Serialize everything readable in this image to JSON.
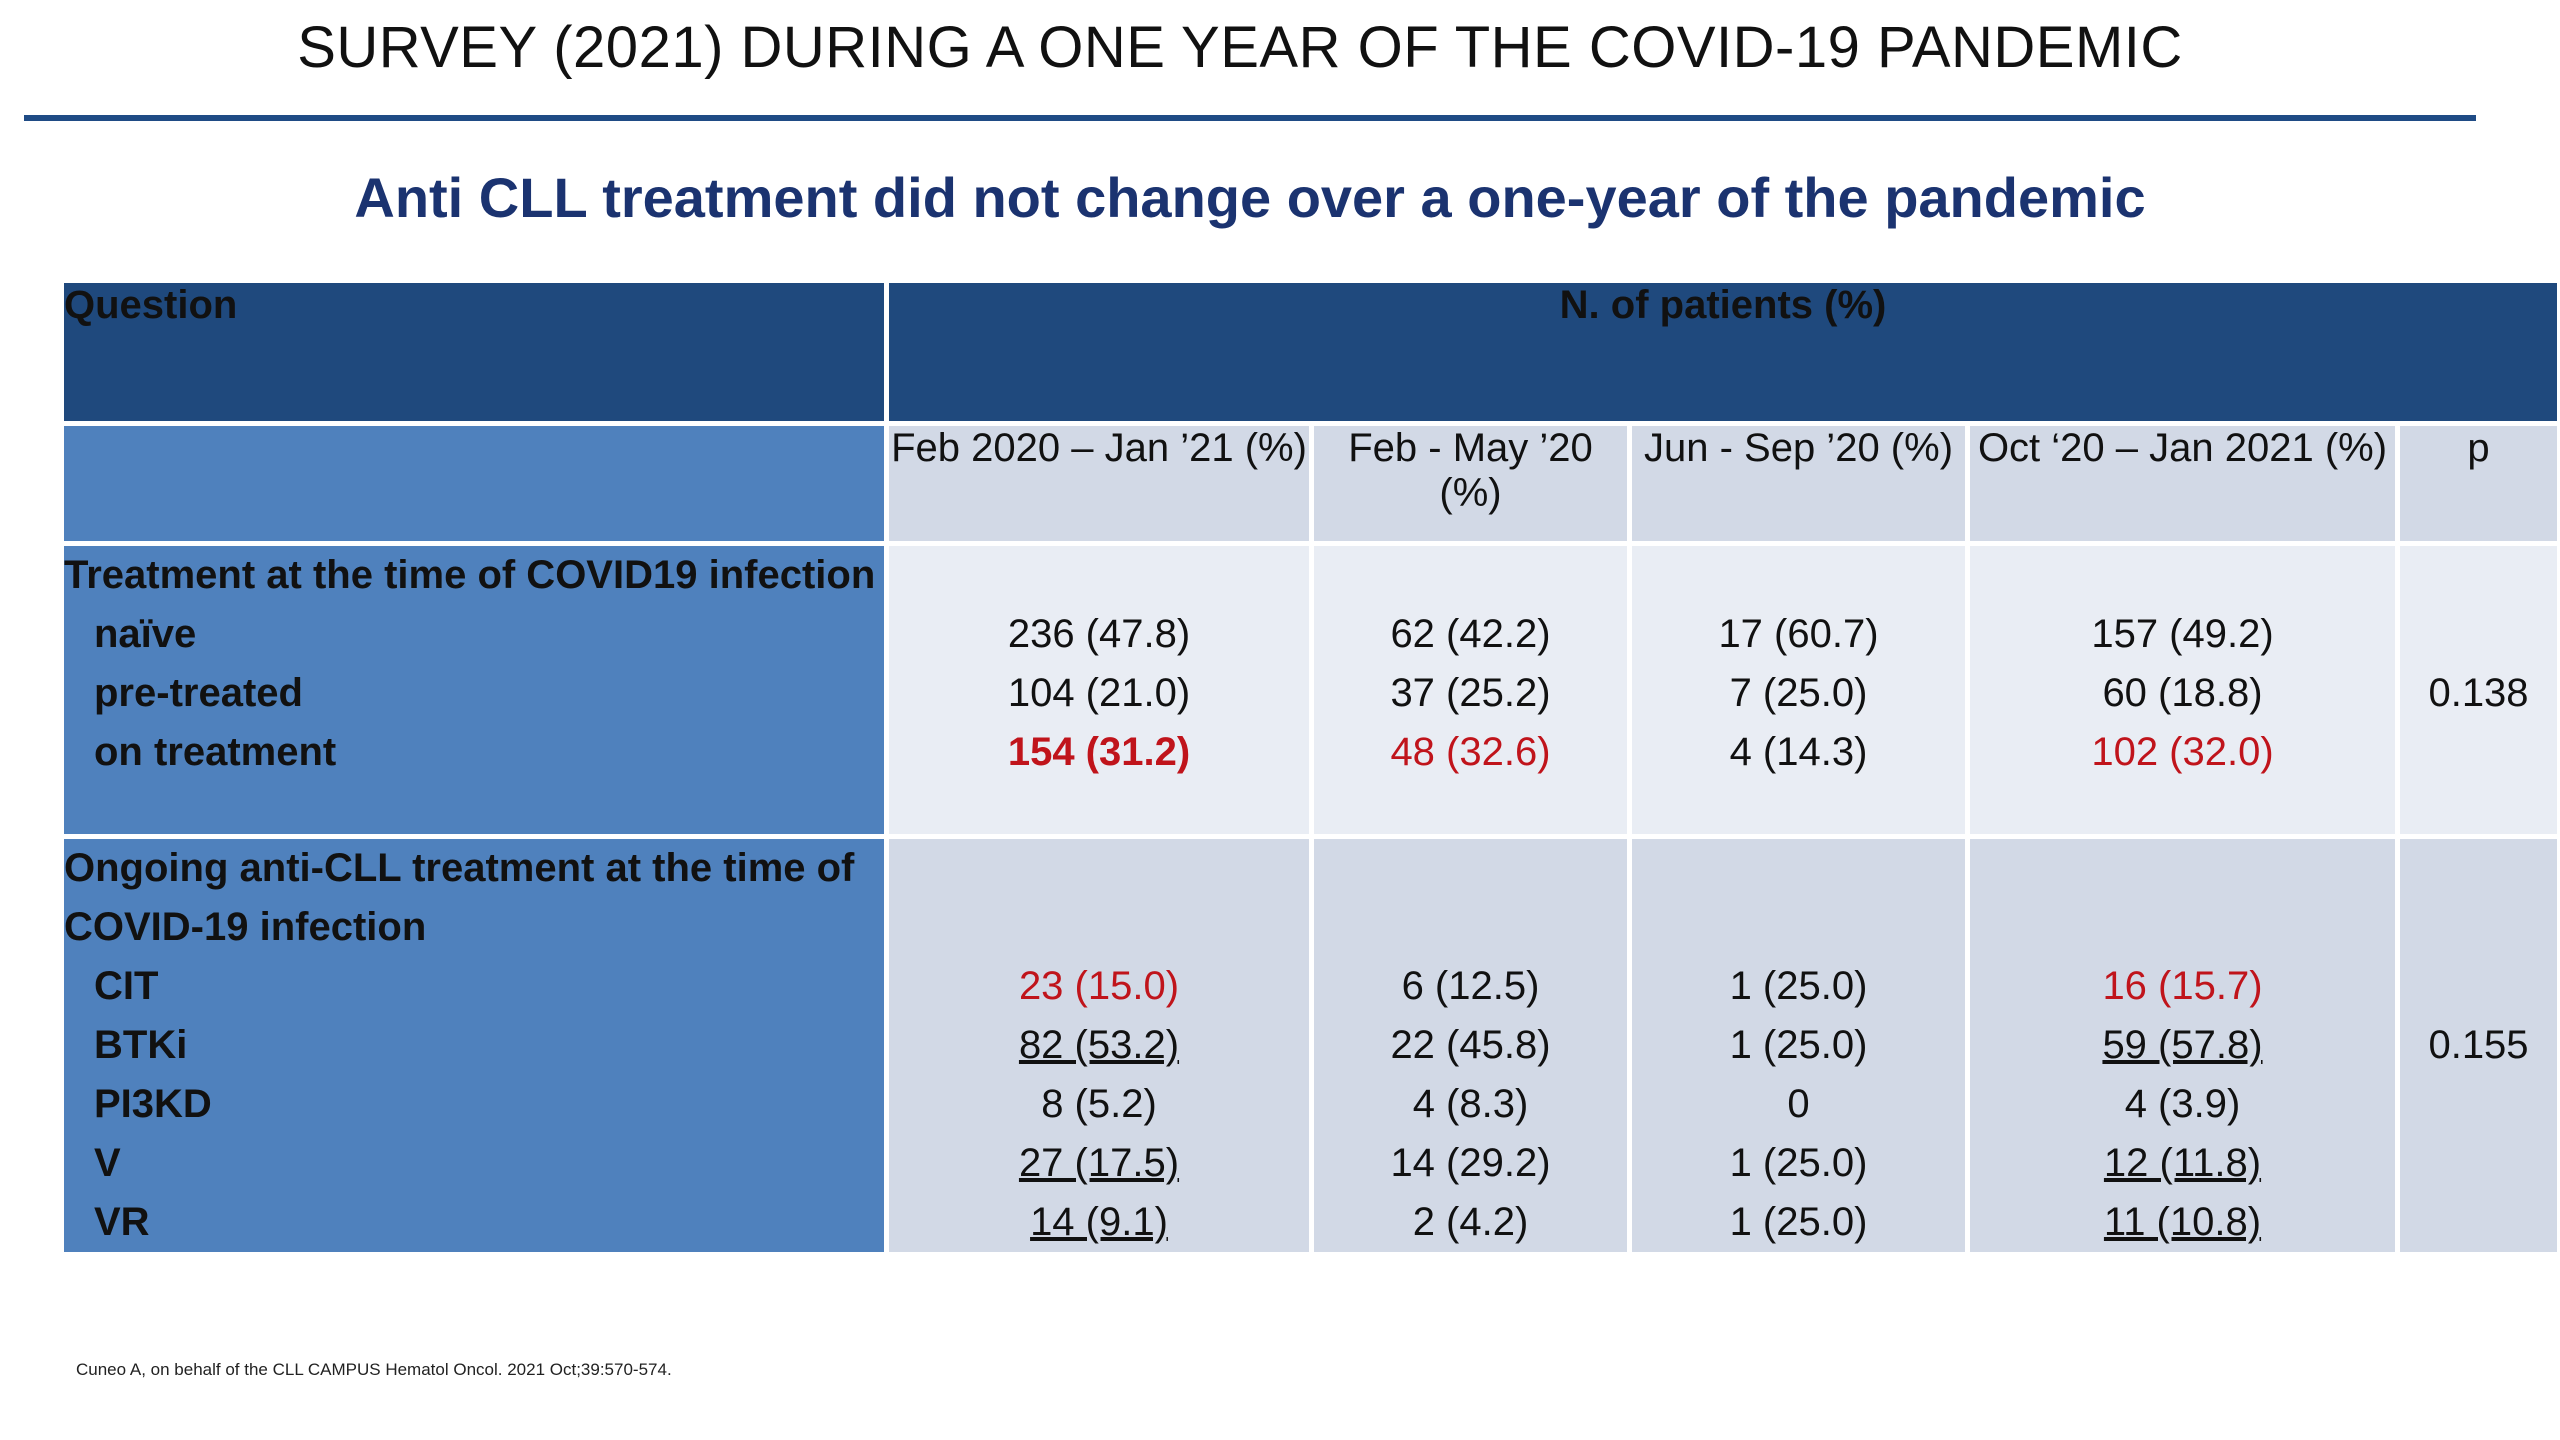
{
  "slide": {
    "title": "SURVEY (2021) DURING A ONE YEAR OF THE COVID-19 PANDEMIC",
    "subtitle": "Anti CLL treatment did not change over a one-year of the pandemic",
    "footnote": "Cuneo A, on behalf of the CLL CAMPUS Hematol Oncol. 2021 Oct;39:570-574."
  },
  "table": {
    "header": {
      "question": "Question",
      "patients": "N. of patients (%)"
    },
    "columns": [
      "Feb 2020 – Jan ’21 (%)",
      "Feb - May ’20 (%)",
      "Jun - Sep ’20 (%)",
      "Oct ‘20 – Jan 2021  (%)",
      "p"
    ],
    "sections": [
      {
        "title_lines": [
          "Treatment at the time of COVID19 infection"
        ],
        "rows": [
          {
            "label": "naïve",
            "values": [
              "236 (47.8)",
              "62 (42.2)",
              "17 (60.7)",
              "157 (49.2)"
            ]
          },
          {
            "label": "pre-treated",
            "values": [
              "104 (21.0)",
              "37 (25.2)",
              "7 (25.0)",
              "60 (18.8)"
            ]
          },
          {
            "label": "on treatment",
            "values": [
              "154 (31.2)",
              "48 (32.6)",
              "4 (14.3)",
              "102 (32.0)"
            ]
          }
        ],
        "p": "0.138"
      },
      {
        "title_lines": [
          "Ongoing anti-CLL treatment at the time of",
          "COVID-19 infection"
        ],
        "rows": [
          {
            "label": "CIT",
            "values": [
              "23 (15.0)",
              "6 (12.5)",
              "1 (25.0)",
              "16 (15.7)"
            ]
          },
          {
            "label": "BTKi",
            "values": [
              "82 (53.2)",
              "22 (45.8)",
              "1 (25.0)",
              "59 (57.8)"
            ]
          },
          {
            "label": "PI3KD",
            "values": [
              "8 (5.2)",
              "4 (8.3)",
              "0",
              "4 (3.9)"
            ]
          },
          {
            "label": "V",
            "values": [
              "27 (17.5)",
              "14 (29.2)",
              "1 (25.0)",
              "12 (11.8)"
            ]
          },
          {
            "label": "VR",
            "values": [
              "14 (9.1)",
              "2 (4.2)",
              "1 (25.0)",
              "11 (10.8)"
            ]
          }
        ],
        "p": "0.155"
      }
    ],
    "colors": {
      "header_dark": "#1f497d",
      "label_blue": "#4f81bd",
      "highlight_red": "#c0141b",
      "rule": "#1f4b85"
    }
  }
}
